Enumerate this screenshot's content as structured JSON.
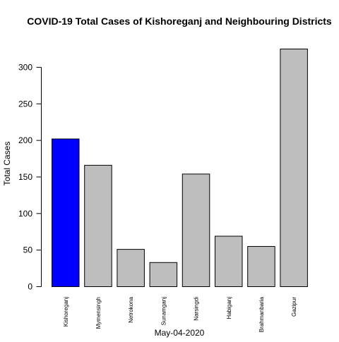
{
  "chart_data": {
    "type": "bar",
    "title": "COVID-19 Total Cases of Kishoreganj and Neighbouring Districts",
    "xlabel": "May-04-2020",
    "ylabel": "Total Cases",
    "categories": [
      "Kishoreganj",
      "Mymensingh",
      "Netrokona",
      "Sunamganj",
      "Narsingdi",
      "Habiganj",
      "Brahmanbaria",
      "Gazipur"
    ],
    "values": [
      202,
      166,
      51,
      33,
      154,
      69,
      55,
      325
    ],
    "bar_colors": [
      "#0000ff",
      "#bebebe",
      "#bebebe",
      "#bebebe",
      "#bebebe",
      "#bebebe",
      "#bebebe",
      "#bebebe"
    ],
    "ylim": [
      0,
      325
    ],
    "yticks": [
      0,
      50,
      100,
      150,
      200,
      250,
      300
    ],
    "grid": false,
    "legend": "none"
  }
}
